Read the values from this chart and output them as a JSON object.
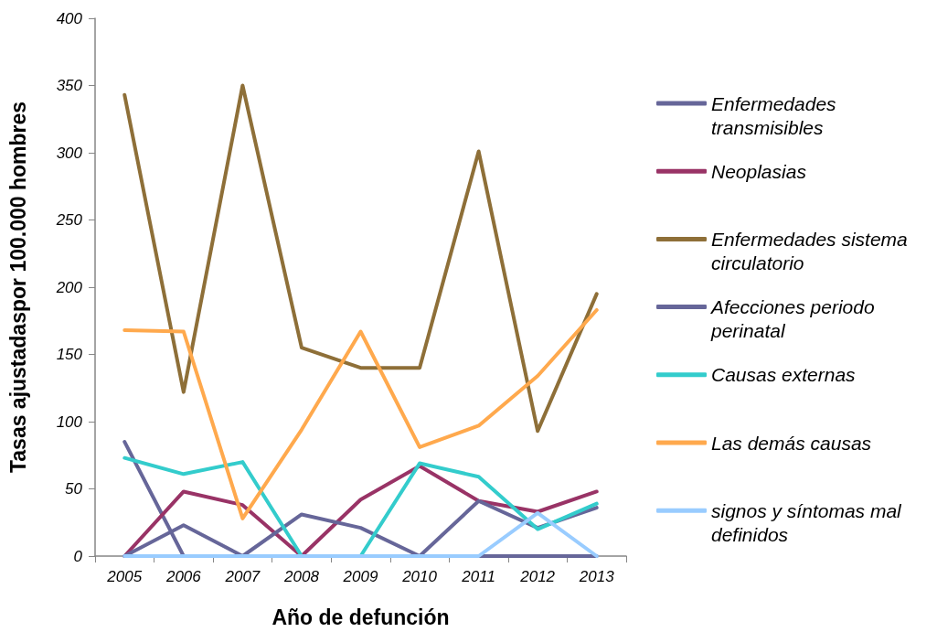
{
  "chart_data": {
    "type": "line",
    "xlabel": "Año de defunción",
    "ylabel": "Tasas ajustadaspor 100.000 hombres",
    "categories": [
      "2005",
      "2006",
      "2007",
      "2008",
      "2009",
      "2010",
      "2011",
      "2012",
      "2013"
    ],
    "series": [
      {
        "name": "Enfermedades transmisibles",
        "color": "#666699",
        "values": [
          85,
          0,
          0,
          0,
          0,
          0,
          0,
          0,
          0
        ]
      },
      {
        "name": "Neoplasias",
        "color": "#993366",
        "values": [
          0,
          48,
          38,
          0,
          42,
          67,
          41,
          33,
          48
        ]
      },
      {
        "name": "Enfermedades sistema circulatorio",
        "color": "#8e6f38",
        "values": [
          343,
          122,
          350,
          155,
          140,
          140,
          301,
          93,
          195
        ]
      },
      {
        "name": "Afecciones periodo perinatal",
        "color": "#666699",
        "values": [
          0,
          23,
          0,
          31,
          21,
          0,
          41,
          21,
          36
        ]
      },
      {
        "name": "Causas externas",
        "color": "#33cccc",
        "values": [
          73,
          61,
          70,
          0,
          0,
          69,
          59,
          20,
          39
        ]
      },
      {
        "name": "Las demás causas",
        "color": "#ffa94d",
        "values": [
          168,
          167,
          28,
          94,
          167,
          81,
          97,
          134,
          183
        ]
      },
      {
        "name": "signos y síntomas mal definidos",
        "color": "#99ccff",
        "values": [
          0,
          0,
          0,
          0,
          0,
          0,
          0,
          32,
          0
        ]
      }
    ],
    "ylim": [
      0,
      400
    ],
    "yticks": [
      0,
      50,
      100,
      150,
      200,
      250,
      300,
      350,
      400
    ],
    "grid": false,
    "legend": "right",
    "marker": "none",
    "line_style": "solid"
  }
}
